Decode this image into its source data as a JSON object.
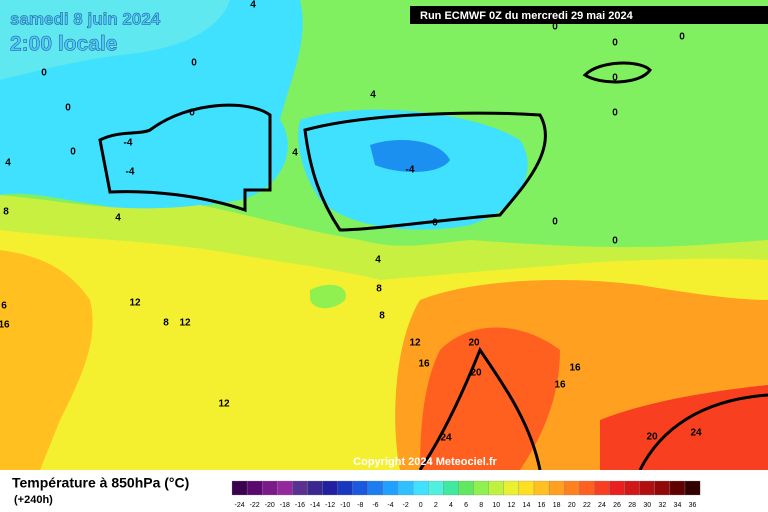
{
  "header": {
    "date": "samedi 8 juin 2024",
    "time": "2:00 locale",
    "run": "Run ECMWF 0Z du mercredi 29 mai 2024"
  },
  "copyright": "Copyright 2024 Meteociel.fr",
  "footer": {
    "title": "Température à 850hPa (°C)",
    "lead": "(+240h)"
  },
  "colorbar": {
    "ticks": [
      -24,
      -22,
      -20,
      -18,
      -16,
      -14,
      -12,
      -10,
      -8,
      -6,
      -4,
      -2,
      0,
      2,
      4,
      6,
      8,
      10,
      12,
      14,
      16,
      18,
      20,
      22,
      24,
      26,
      28,
      30,
      32,
      34,
      36
    ],
    "colors": [
      "#3c0050",
      "#5a0a6e",
      "#7a1a8a",
      "#96289e",
      "#5a3090",
      "#3a2890",
      "#2020a0",
      "#1838c0",
      "#1a58e0",
      "#1c7cf0",
      "#20a0ff",
      "#30c0ff",
      "#40e0ff",
      "#50f0e0",
      "#40e8a0",
      "#60e860",
      "#90f050",
      "#c0f040",
      "#e8f030",
      "#ffe020",
      "#ffc020",
      "#ffa020",
      "#ff8020",
      "#ff6020",
      "#f84020",
      "#e82020",
      "#d01818",
      "#b01010",
      "#900808",
      "#600000",
      "#300000"
    ]
  },
  "contour_labels": [
    4,
    0,
    0,
    0,
    0,
    -4,
    0,
    -4,
    4,
    4,
    4,
    0,
    0,
    0,
    0,
    0,
    -4,
    0,
    0,
    0,
    8,
    4,
    4,
    8,
    8,
    12,
    8,
    12,
    6,
    16,
    12,
    20,
    16,
    20,
    16,
    16,
    12,
    24,
    20,
    24
  ]
}
